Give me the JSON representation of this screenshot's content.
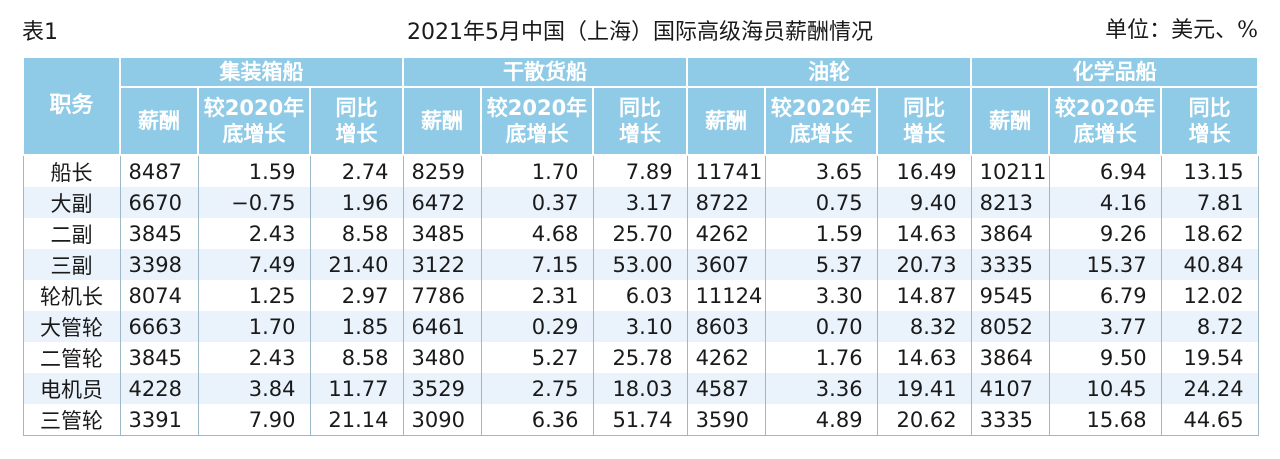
{
  "caption": {
    "label": "表1",
    "title": "2021年5月中国（上海）国际高级海员薪酬情况",
    "unit": "单位：美元、%"
  },
  "header": {
    "role_label": "职务",
    "groups": [
      "集装箱船",
      "干散货船",
      "油轮",
      "化学品船"
    ],
    "sub_salary": "薪酬",
    "sub_vs2020_line1": "较2020年",
    "sub_vs2020_line2": "底增长",
    "sub_yoy_line1": "同比",
    "sub_yoy_line2": "增长"
  },
  "rows": [
    {
      "role": "船长",
      "v": [
        "8487",
        "1.59",
        "2.74",
        "8259",
        "1.70",
        "7.89",
        "11741",
        "3.65",
        "16.49",
        "10211",
        "6.94",
        "13.15"
      ]
    },
    {
      "role": "大副",
      "v": [
        "6670",
        "−0.75",
        "1.96",
        "6472",
        "0.37",
        "3.17",
        "8722",
        "0.75",
        "9.40",
        "8213",
        "4.16",
        "7.81"
      ]
    },
    {
      "role": "二副",
      "v": [
        "3845",
        "2.43",
        "8.58",
        "3485",
        "4.68",
        "25.70",
        "4262",
        "1.59",
        "14.63",
        "3864",
        "9.26",
        "18.62"
      ]
    },
    {
      "role": "三副",
      "v": [
        "3398",
        "7.49",
        "21.40",
        "3122",
        "7.15",
        "53.00",
        "3607",
        "5.37",
        "20.73",
        "3335",
        "15.37",
        "40.84"
      ]
    },
    {
      "role": "轮机长",
      "v": [
        "8074",
        "1.25",
        "2.97",
        "7786",
        "2.31",
        "6.03",
        "11124",
        "3.30",
        "14.87",
        "9545",
        "6.79",
        "12.02"
      ]
    },
    {
      "role": "大管轮",
      "v": [
        "6663",
        "1.70",
        "1.85",
        "6461",
        "0.29",
        "3.10",
        "8603",
        "0.70",
        "8.32",
        "8052",
        "3.77",
        "8.72"
      ]
    },
    {
      "role": "二管轮",
      "v": [
        "3845",
        "2.43",
        "8.58",
        "3480",
        "5.27",
        "25.78",
        "4262",
        "1.76",
        "14.63",
        "3864",
        "9.50",
        "19.54"
      ]
    },
    {
      "role": "电机员",
      "v": [
        "4228",
        "3.84",
        "11.77",
        "3529",
        "2.75",
        "18.03",
        "4587",
        "3.36",
        "19.41",
        "4107",
        "10.45",
        "24.24"
      ]
    },
    {
      "role": "三管轮",
      "v": [
        "3391",
        "7.90",
        "21.14",
        "3090",
        "6.36",
        "51.74",
        "3590",
        "4.89",
        "20.62",
        "3335",
        "15.68",
        "44.65"
      ]
    }
  ]
}
